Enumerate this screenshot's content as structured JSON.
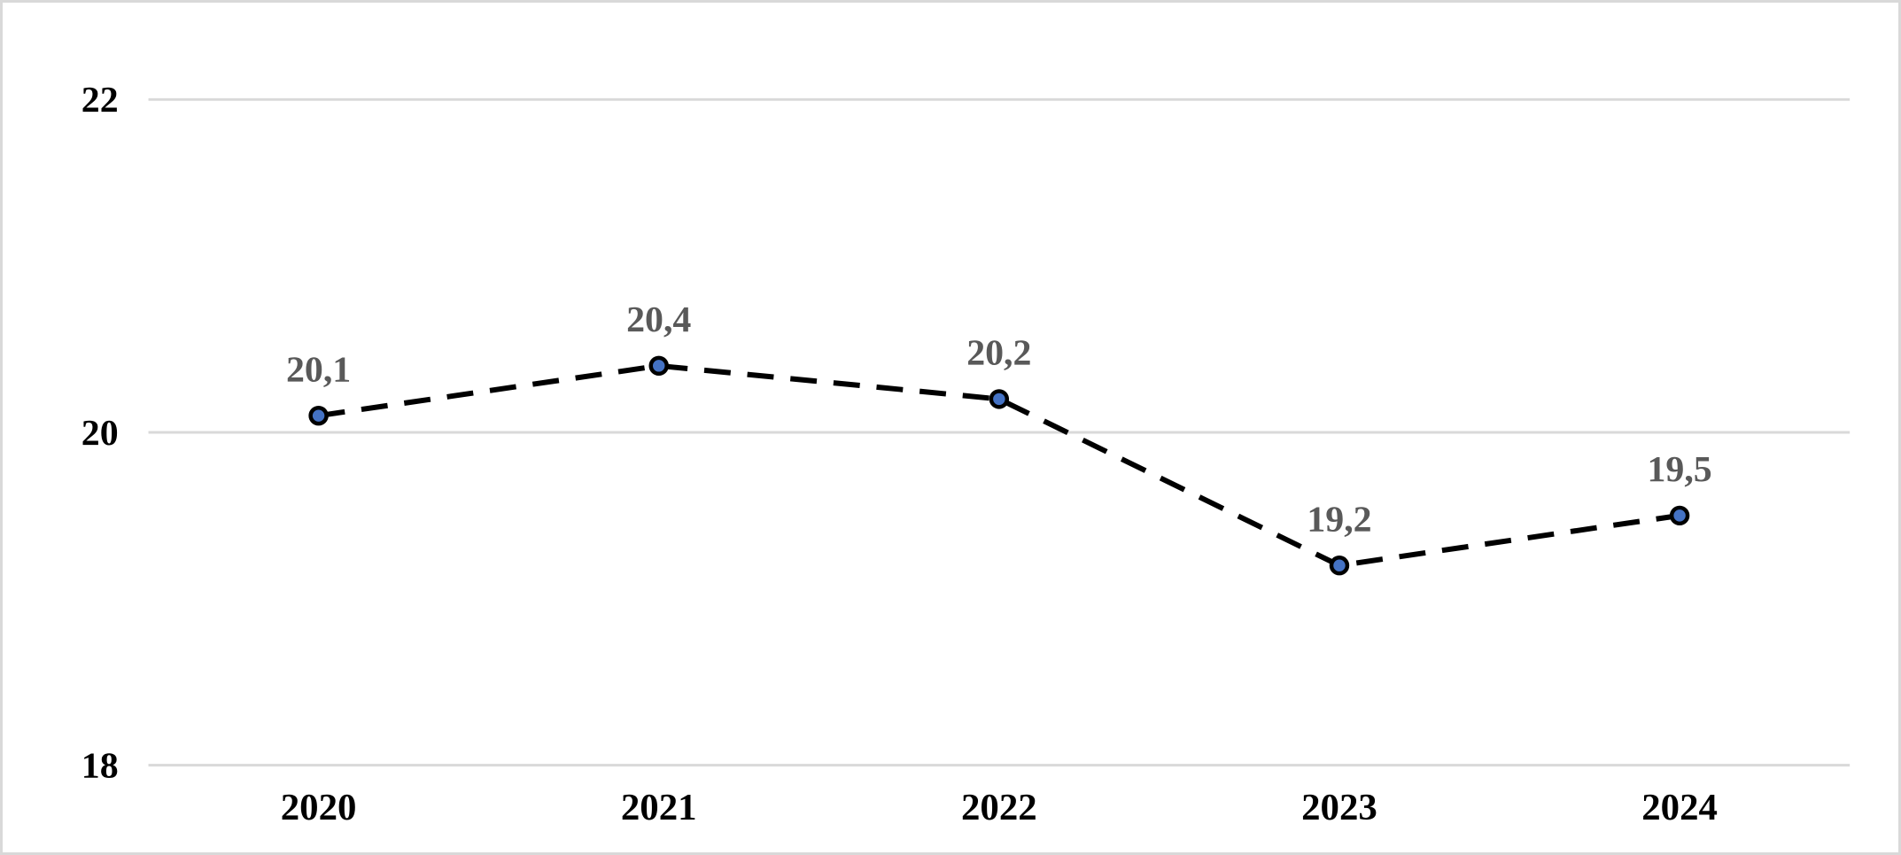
{
  "page": {
    "background": "#ffffff",
    "border_color": "#d9d9d9"
  },
  "chart_data": {
    "type": "line",
    "title": "",
    "subtitle": "",
    "xlabel": "",
    "ylabel": "",
    "categories": [
      "2020",
      "2021",
      "2022",
      "2023",
      "2024"
    ],
    "series": [
      {
        "name": "series-1",
        "values": [
          20.1,
          20.4,
          20.2,
          19.2,
          19.5
        ],
        "data_labels": [
          "20,1",
          "20,4",
          "20,2",
          "19,2",
          "19,5"
        ],
        "line_color": "#000000",
        "line_style": "dashed",
        "marker": "circle",
        "marker_fill": "#4472c4",
        "marker_stroke": "#000000"
      }
    ],
    "ylim": [
      18,
      22
    ],
    "yticks": [
      18,
      20,
      22
    ],
    "ytick_labels": [
      "18",
      "20",
      "22"
    ],
    "grid": "horizontal",
    "gridline_color": "#d9d9d9",
    "axis_text_color": "#000000",
    "data_label_color": "#595959",
    "legend": "none",
    "data_labels_position": "above"
  }
}
